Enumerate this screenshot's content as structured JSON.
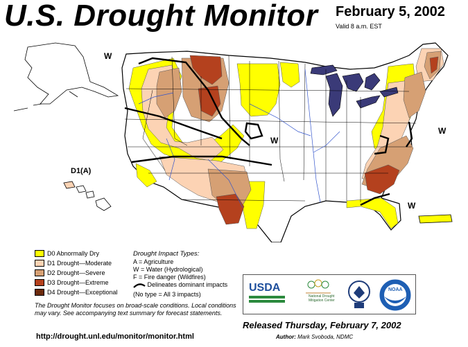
{
  "title": "U.S. Drought Monitor",
  "date": "February 5, 2002",
  "valid": "Valid 8 a.m. EST",
  "map_labels": {
    "w_northwest": "W",
    "w_plains": "W",
    "w_atlantic": "W",
    "w_southeast": "W",
    "hawaii": "D1(A)"
  },
  "legend": {
    "items": [
      {
        "label": "D0 Abnormally Dry",
        "color": "#ffff00"
      },
      {
        "label": "D1 Drought—Moderate",
        "color": "#fcd3b4"
      },
      {
        "label": "D2 Drought—Severe",
        "color": "#d6a074"
      },
      {
        "label": "D3 Drought—Extreme",
        "color": "#b4411e"
      },
      {
        "label": "D4 Drought—Exceptional",
        "color": "#6b2a0c"
      }
    ]
  },
  "impacts": {
    "title": "Drought Impact Types:",
    "lines": [
      "A = Agriculture",
      "W = Water (Hydrological)",
      "F = Fire danger (Wildfires)"
    ],
    "delineates": "Delineates dominant impacts",
    "no_type": "(No type = All 3 impacts)"
  },
  "note": "The Drought Monitor focuses on broad-scale conditions. Local conditions may vary. See accompanying text summary for forecast statements.",
  "url": "http://drought.unl.edu/monitor/monitor.html",
  "released": "Released Thursday, February 7, 2002",
  "author_label": "Author:",
  "author": "Mark Svoboda, NDMC",
  "logos": {
    "usda": "USDA",
    "ndmc": "National Drought Mitigation Center",
    "noaa": "NOAA"
  },
  "colors": {
    "water": "#3a3a78",
    "d0": "#ffff00",
    "d1": "#fcd3b4",
    "d2": "#d6a074",
    "d3": "#b4411e",
    "d4": "#6b2a0c",
    "river": "#3355cc"
  }
}
